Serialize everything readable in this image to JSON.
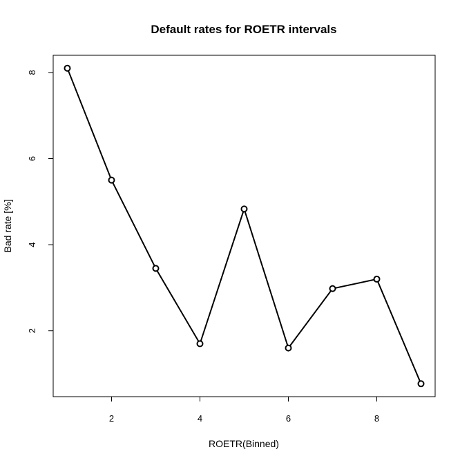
{
  "chart_data": {
    "type": "line",
    "title": "Default rates for ROETR intervals",
    "xlabel": "ROETR(Binned)",
    "ylabel": "Bad rate [%]",
    "x": [
      1,
      2,
      3,
      4,
      5,
      6,
      7,
      8,
      9
    ],
    "values": [
      8.1,
      5.5,
      3.45,
      1.7,
      4.83,
      1.6,
      2.98,
      3.2,
      0.77
    ],
    "xlim": [
      0.68,
      9.32
    ],
    "ylim": [
      0.47,
      8.4
    ],
    "xticks": [
      "2",
      "4",
      "6",
      "8"
    ],
    "yticks": [
      "2",
      "4",
      "6",
      "8"
    ],
    "grid": false,
    "marker": "open-circle",
    "line_color": "#000000"
  }
}
